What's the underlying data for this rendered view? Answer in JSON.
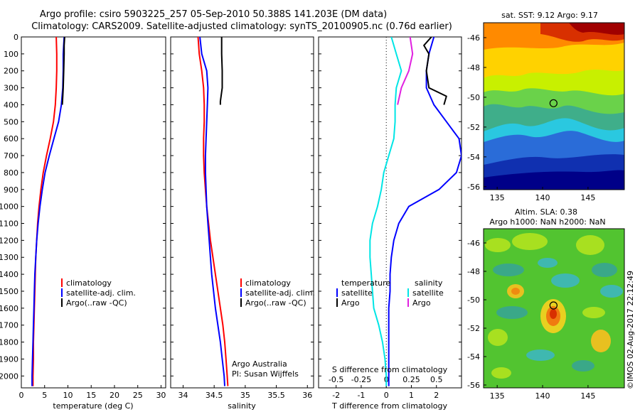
{
  "header": {
    "line1": "Argo profile: csiro 5903225_257 05-Sep-2010 50.388S 141.203E (DM data)",
    "line2": "Climatology: CARS2009. Satellite-adjusted climatology: synTS_20100905.nc (0.76d earlier)"
  },
  "colors": {
    "climatology": "#ff0000",
    "satellite": "#0000ff",
    "argo": "#000000",
    "salinity_satellite": "#00e5e5",
    "salinity_argo": "#e020e0"
  },
  "panels": {
    "temperature": {
      "xlabel": "temperature (deg C)",
      "legend": [
        "climatology",
        "satellite-adj. clim.",
        "Argo(..raw -QC)"
      ]
    },
    "salinity": {
      "xlabel": "salinity",
      "legend": [
        "climatology",
        "satellite-adj. clim.",
        "Argo(..raw -QC)"
      ],
      "credit_line1": "Argo Australia",
      "credit_line2": "PI: Susan Wijffels"
    },
    "difference": {
      "xlabel": "T difference from climatology",
      "top_label": "S difference from climatology",
      "legend_temp_title": "temperature",
      "legend_sal_title": "salinity",
      "legend_temp_items": [
        "satellite",
        "Argo"
      ],
      "legend_sal_items": [
        "satellite",
        "Argo"
      ]
    }
  },
  "maps": {
    "sst_title": "sat. SST: 9.12  Argo: 9.17",
    "sla_title_line1": "Altim. SLA: 0.38",
    "sla_title_line2": "Argo h1000: NaN h2000: NaN",
    "lat_ticks": [
      "-46",
      "-48",
      "-50",
      "-52",
      "-54",
      "-56"
    ],
    "lon_ticks": [
      "135",
      "140",
      "145"
    ],
    "float_position": {
      "lon": 141.2,
      "lat": -50.4
    }
  },
  "footer": {
    "watermark": "©IMOS 02-Aug-2017 22:12:49"
  },
  "chart_data": [
    {
      "type": "line",
      "id": "temperature_profile",
      "xlabel": "temperature (deg C)",
      "ylabel": "",
      "xlim": [
        0,
        31
      ],
      "ylim": [
        2070,
        0
      ],
      "x_ticks": [
        "0",
        "5",
        "10",
        "15",
        "20",
        "25",
        "30"
      ],
      "y_ticks": [
        "0",
        "100",
        "200",
        "300",
        "400",
        "500",
        "600",
        "700",
        "800",
        "900",
        "1000",
        "1100",
        "1200",
        "1300",
        "1400",
        "1500",
        "1600",
        "1700",
        "1800",
        "1900",
        "2000"
      ],
      "depth": [
        0,
        100,
        200,
        300,
        400,
        500,
        600,
        700,
        800,
        900,
        1000,
        1100,
        1200,
        1300,
        1400,
        1500,
        1600,
        1700,
        1800,
        1900,
        2000,
        2060
      ],
      "series": [
        {
          "name": "climatology",
          "x": [
            7.5,
            7.6,
            7.6,
            7.5,
            7.3,
            6.9,
            6.2,
            5.4,
            4.7,
            4.2,
            3.8,
            3.5,
            3.3,
            3.1,
            3.0,
            2.9,
            2.8,
            2.7,
            2.6,
            2.6,
            2.5,
            2.5
          ]
        },
        {
          "name": "satellite-adj. clim.",
          "x": [
            9.2,
            9.0,
            9.0,
            8.9,
            8.6,
            8.0,
            7.0,
            6.0,
            5.1,
            4.5,
            4.0,
            3.6,
            3.3,
            3.1,
            2.9,
            2.8,
            2.7,
            2.6,
            2.5,
            2.4,
            2.3,
            2.3
          ]
        },
        {
          "name": "Argo(..raw -QC)",
          "depth": [
            0,
            50,
            100,
            200,
            300,
            350,
            400
          ],
          "x": [
            9.3,
            9.2,
            9.2,
            9.1,
            9.0,
            8.9,
            8.8
          ]
        }
      ]
    },
    {
      "type": "line",
      "id": "salinity_profile",
      "xlabel": "salinity",
      "xlim": [
        33.8,
        36.1
      ],
      "ylim": [
        2070,
        0
      ],
      "x_ticks": [
        "34",
        "34.5",
        "35",
        "35.5",
        "36"
      ],
      "depth": [
        0,
        100,
        200,
        300,
        400,
        500,
        600,
        700,
        800,
        900,
        1000,
        1100,
        1200,
        1300,
        1400,
        1500,
        1600,
        1700,
        1800,
        1900,
        2000,
        2060
      ],
      "series": [
        {
          "name": "climatology",
          "x": [
            34.24,
            34.26,
            34.3,
            34.33,
            34.34,
            34.34,
            34.33,
            34.33,
            34.34,
            34.36,
            34.38,
            34.41,
            34.44,
            34.48,
            34.52,
            34.56,
            34.6,
            34.64,
            34.67,
            34.69,
            34.71,
            34.72
          ]
        },
        {
          "name": "satellite-adj. clim.",
          "x": [
            34.27,
            34.3,
            34.38,
            34.4,
            34.39,
            34.38,
            34.37,
            34.36,
            34.36,
            34.37,
            34.38,
            34.4,
            34.42,
            34.44,
            34.46,
            34.49,
            34.52,
            34.56,
            34.6,
            34.63,
            34.66,
            34.67
          ]
        },
        {
          "name": "Argo(..raw -QC)",
          "depth": [
            0,
            100,
            200,
            300,
            380,
            400
          ],
          "x": [
            34.62,
            34.62,
            34.63,
            34.63,
            34.6,
            34.6
          ]
        }
      ]
    },
    {
      "type": "line",
      "id": "difference_profile",
      "xlabel": "T difference from climatology",
      "top_label": "S difference from climatology",
      "xlim": [
        -2.7,
        3.0
      ],
      "ylim": [
        2070,
        0
      ],
      "x_ticks": [
        "-2",
        "-1",
        "0",
        "1",
        "2"
      ],
      "top_ticks": [
        "-0.5",
        "-0.25",
        "0",
        "0.25",
        "0.5"
      ],
      "top_tick_positions": [
        -2,
        -1,
        0,
        1,
        2
      ],
      "depth": [
        0,
        100,
        200,
        300,
        400,
        500,
        600,
        700,
        800,
        900,
        1000,
        1100,
        1200,
        1300,
        1400,
        1500,
        1600,
        1700,
        1800,
        1900,
        2000,
        2060
      ],
      "series": [
        {
          "name": "temperature satellite",
          "x": [
            1.9,
            1.7,
            1.6,
            1.6,
            1.9,
            2.4,
            2.9,
            3.0,
            2.8,
            2.1,
            0.9,
            0.5,
            0.3,
            0.2,
            0.15,
            0.15,
            0.1,
            0.1,
            0.1,
            0.1,
            0.1,
            0.1
          ]
        },
        {
          "name": "temperature Argo",
          "depth": [
            0,
            50,
            100,
            200,
            300,
            350,
            400
          ],
          "x": [
            1.8,
            1.5,
            1.7,
            1.6,
            1.7,
            2.4,
            2.3
          ]
        },
        {
          "name": "salinity satellite",
          "x": [
            0.2,
            0.4,
            0.6,
            0.4,
            0.35,
            0.35,
            0.3,
            0.1,
            -0.1,
            -0.2,
            -0.35,
            -0.55,
            -0.65,
            -0.65,
            -0.6,
            -0.55,
            -0.5,
            -0.3,
            -0.15,
            -0.05,
            0.0,
            0.0
          ]
        },
        {
          "name": "salinity Argo",
          "depth": [
            0,
            100,
            200,
            300,
            400
          ],
          "x": [
            0.95,
            1.05,
            0.9,
            0.6,
            0.45
          ]
        }
      ]
    }
  ]
}
